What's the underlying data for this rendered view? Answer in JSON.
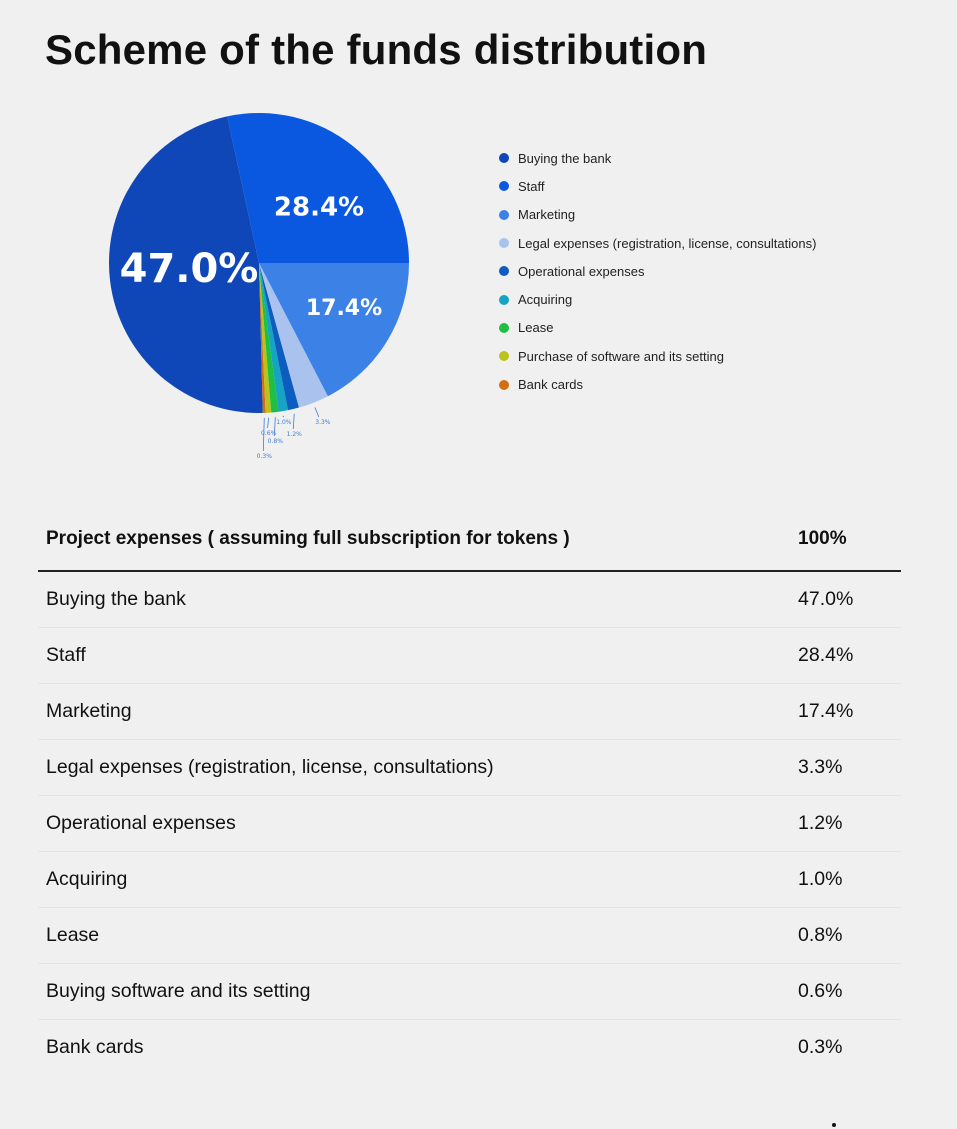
{
  "title": "Scheme of the funds distribution",
  "chart_data": {
    "type": "pie",
    "slices": [
      {
        "label": "Buying the bank",
        "value": 47.0,
        "display": "47.0%",
        "color": "#0f47b8"
      },
      {
        "label": "Staff",
        "value": 28.4,
        "display": "28.4%",
        "color": "#0b58e0"
      },
      {
        "label": "Marketing",
        "value": 17.4,
        "display": "17.4%",
        "color": "#3c82e6"
      },
      {
        "label": "Legal expenses (registration, license, consultations)",
        "value": 3.3,
        "display": "3.3%",
        "color": "#a9c2ee"
      },
      {
        "label": "Operational expenses",
        "value": 1.2,
        "display": "1.2%",
        "color": "#0c5dbf"
      },
      {
        "label": "Acquiring",
        "value": 1.0,
        "display": "1.0%",
        "color": "#15a4c3"
      },
      {
        "label": "Lease",
        "value": 0.8,
        "display": "0.8%",
        "color": "#1fbf44"
      },
      {
        "label": "Purchase of software and its setting",
        "value": 0.6,
        "display": "0.6%",
        "color": "#bcc21c"
      },
      {
        "label": "Bank cards",
        "value": 0.3,
        "display": "0.3%",
        "color": "#d26f15"
      }
    ],
    "legend_position": "right"
  },
  "table": {
    "header_label": "Project expenses ( assuming full subscription for tokens )",
    "header_value": "100%",
    "rows": [
      {
        "name": "Buying the bank",
        "value": "47.0%"
      },
      {
        "name": "Staff",
        "value": "28.4%"
      },
      {
        "name": "Marketing",
        "value": "17.4%"
      },
      {
        "name": "Legal expenses (registration, license, consultations)",
        "value": "3.3%"
      },
      {
        "name": "Operational expenses",
        "value": "1.2%"
      },
      {
        "name": "Acquiring",
        "value": "1.0%"
      },
      {
        "name": "Lease",
        "value": "0.8%"
      },
      {
        "name": "Buying software and its setting",
        "value": "0.6%"
      },
      {
        "name": "Bank cards",
        "value": "0.3%"
      }
    ]
  }
}
